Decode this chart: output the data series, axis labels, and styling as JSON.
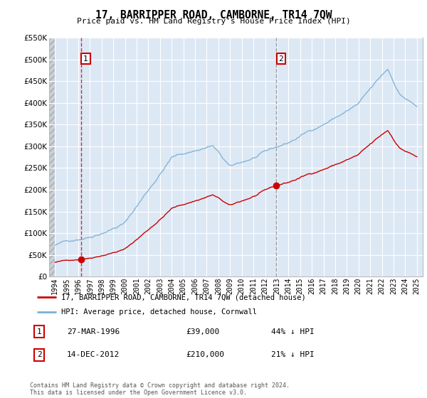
{
  "title": "17, BARRIPPER ROAD, CAMBORNE, TR14 7QW",
  "subtitle": "Price paid vs. HM Land Registry's House Price Index (HPI)",
  "property_label": "17, BARRIPPER ROAD, CAMBORNE, TR14 7QW (detached house)",
  "hpi_label": "HPI: Average price, detached house, Cornwall",
  "sale1_date": "27-MAR-1996",
  "sale1_price": 39000,
  "sale1_note": "44% ↓ HPI",
  "sale2_date": "14-DEC-2012",
  "sale2_price": 210000,
  "sale2_note": "21% ↓ HPI",
  "copyright": "Contains HM Land Registry data © Crown copyright and database right 2024.\nThis data is licensed under the Open Government Licence v3.0.",
  "property_color": "#cc0000",
  "hpi_color": "#7ab0d4",
  "sale1_x": 1996.23,
  "sale2_x": 2012.96,
  "ylim_min": 0,
  "ylim_max": 550000,
  "xlim_min": 1993.5,
  "xlim_max": 2025.5,
  "background_plot": "#dde8f5",
  "grid_color": "#ffffff"
}
